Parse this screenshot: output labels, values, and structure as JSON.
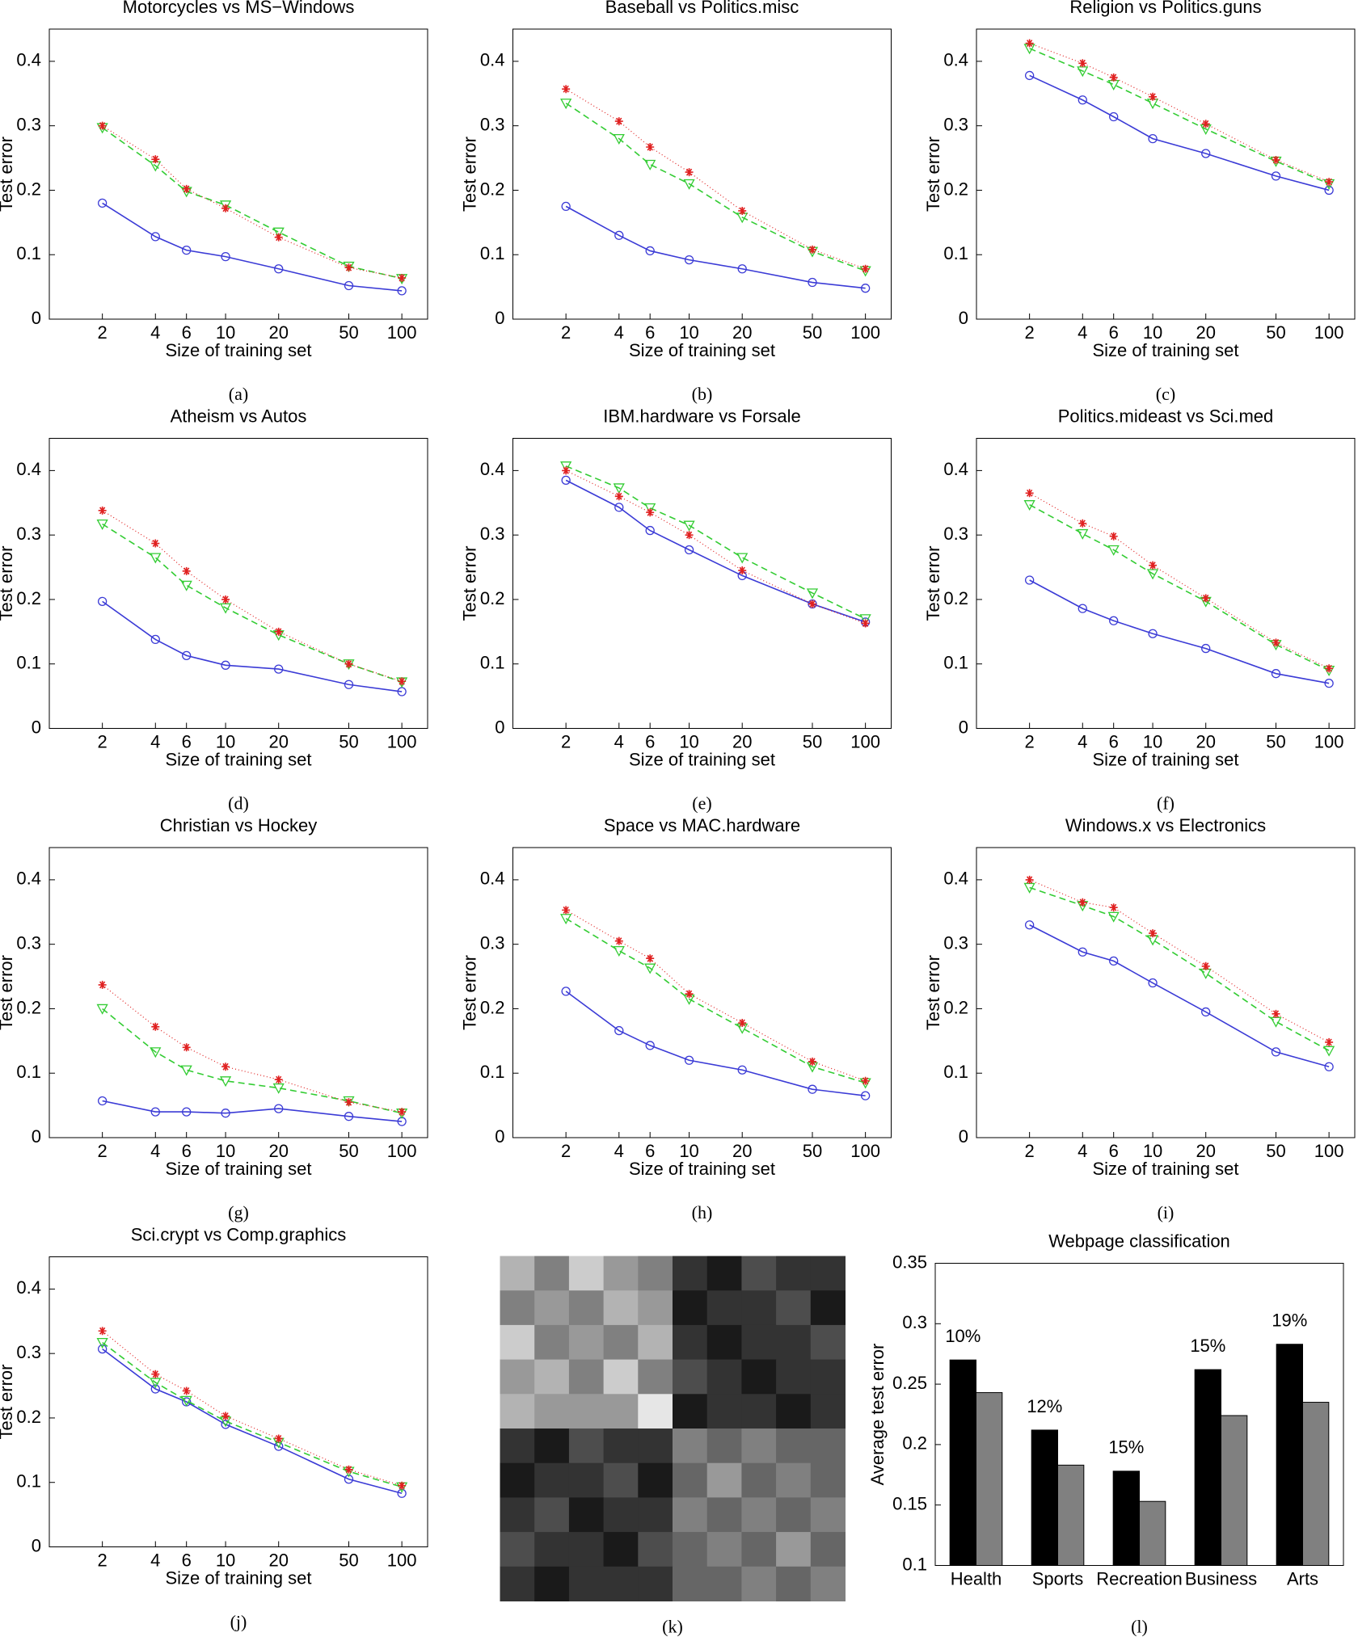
{
  "chart_data": [
    {
      "type": "line",
      "title": "Motorcycles  vs  MS−Windows",
      "xlabel": "Size of training set",
      "ylabel": "Test error",
      "caption": "(a)",
      "log_x": true,
      "x": [
        2,
        4,
        6,
        10,
        20,
        50,
        100
      ],
      "xlim": [
        1,
        140
      ],
      "xticks": [
        2,
        4,
        6,
        10,
        20,
        50,
        100
      ],
      "ylim": [
        0,
        0.45
      ],
      "yticks": [
        0,
        0.1,
        0.2,
        0.3,
        0.4
      ],
      "series": [
        {
          "color": "#3b3bd6",
          "marker": "circle",
          "dash": "none",
          "values": [
            0.18,
            0.128,
            0.107,
            0.097,
            0.078,
            0.052,
            0.044
          ]
        },
        {
          "color": "#33cc33",
          "marker": "triangle",
          "dash": "8 5",
          "values": [
            0.297,
            0.238,
            0.198,
            0.177,
            0.135,
            0.082,
            0.063
          ]
        },
        {
          "color": "#e02020",
          "marker": "star",
          "dash": "1 3",
          "values": [
            0.3,
            0.248,
            0.202,
            0.172,
            0.127,
            0.08,
            0.064
          ]
        }
      ]
    },
    {
      "type": "line",
      "title": "Baseball  vs  Politics.misc",
      "xlabel": "Size of training set",
      "ylabel": "Test error",
      "caption": "(b)",
      "log_x": true,
      "x": [
        2,
        4,
        6,
        10,
        20,
        50,
        100
      ],
      "xlim": [
        1,
        140
      ],
      "xticks": [
        2,
        4,
        6,
        10,
        20,
        50,
        100
      ],
      "ylim": [
        0,
        0.45
      ],
      "yticks": [
        0,
        0.1,
        0.2,
        0.3,
        0.4
      ],
      "series": [
        {
          "color": "#3b3bd6",
          "marker": "circle",
          "dash": "none",
          "values": [
            0.175,
            0.13,
            0.106,
            0.092,
            0.078,
            0.057,
            0.048
          ]
        },
        {
          "color": "#33cc33",
          "marker": "triangle",
          "dash": "8 5",
          "values": [
            0.335,
            0.28,
            0.24,
            0.21,
            0.158,
            0.105,
            0.075
          ]
        },
        {
          "color": "#e02020",
          "marker": "star",
          "dash": "1 3",
          "values": [
            0.357,
            0.307,
            0.267,
            0.228,
            0.168,
            0.108,
            0.078
          ]
        }
      ]
    },
    {
      "type": "line",
      "title": "Religion  vs  Politics.guns",
      "xlabel": "Size of training set",
      "ylabel": "Test error",
      "caption": "(c)",
      "log_x": true,
      "x": [
        2,
        4,
        6,
        10,
        20,
        50,
        100
      ],
      "xlim": [
        1,
        140
      ],
      "xticks": [
        2,
        4,
        6,
        10,
        20,
        50,
        100
      ],
      "ylim": [
        0,
        0.45
      ],
      "yticks": [
        0,
        0.1,
        0.2,
        0.3,
        0.4
      ],
      "series": [
        {
          "color": "#3b3bd6",
          "marker": "circle",
          "dash": "none",
          "values": [
            0.378,
            0.34,
            0.314,
            0.28,
            0.257,
            0.222,
            0.2
          ]
        },
        {
          "color": "#33cc33",
          "marker": "triangle",
          "dash": "8 5",
          "values": [
            0.42,
            0.385,
            0.364,
            0.335,
            0.295,
            0.245,
            0.21
          ]
        },
        {
          "color": "#e02020",
          "marker": "star",
          "dash": "1 3",
          "values": [
            0.428,
            0.397,
            0.375,
            0.345,
            0.303,
            0.247,
            0.213
          ]
        }
      ]
    },
    {
      "type": "line",
      "title": "Atheism  vs  Autos",
      "xlabel": "Size of training set",
      "ylabel": "Test error",
      "caption": "(d)",
      "log_x": true,
      "x": [
        2,
        4,
        6,
        10,
        20,
        50,
        100
      ],
      "xlim": [
        1,
        140
      ],
      "xticks": [
        2,
        4,
        6,
        10,
        20,
        50,
        100
      ],
      "ylim": [
        0,
        0.45
      ],
      "yticks": [
        0,
        0.1,
        0.2,
        0.3,
        0.4
      ],
      "series": [
        {
          "color": "#3b3bd6",
          "marker": "circle",
          "dash": "none",
          "values": [
            0.197,
            0.138,
            0.113,
            0.098,
            0.092,
            0.068,
            0.057
          ]
        },
        {
          "color": "#33cc33",
          "marker": "triangle",
          "dash": "8 5",
          "values": [
            0.317,
            0.265,
            0.222,
            0.187,
            0.145,
            0.1,
            0.072
          ]
        },
        {
          "color": "#e02020",
          "marker": "star",
          "dash": "1 3",
          "values": [
            0.338,
            0.287,
            0.244,
            0.2,
            0.15,
            0.1,
            0.073
          ]
        }
      ]
    },
    {
      "type": "line",
      "title": "IBM.hardware  vs  Forsale",
      "xlabel": "Size of training set",
      "ylabel": "Test error",
      "caption": "(e)",
      "log_x": true,
      "x": [
        2,
        4,
        6,
        10,
        20,
        50,
        100
      ],
      "xlim": [
        1,
        140
      ],
      "xticks": [
        2,
        4,
        6,
        10,
        20,
        50,
        100
      ],
      "ylim": [
        0,
        0.45
      ],
      "yticks": [
        0,
        0.1,
        0.2,
        0.3,
        0.4
      ],
      "series": [
        {
          "color": "#3b3bd6",
          "marker": "circle",
          "dash": "none",
          "values": [
            0.385,
            0.343,
            0.307,
            0.277,
            0.237,
            0.193,
            0.165
          ]
        },
        {
          "color": "#33cc33",
          "marker": "triangle",
          "dash": "8 5",
          "values": [
            0.407,
            0.373,
            0.342,
            0.315,
            0.265,
            0.21,
            0.17
          ]
        },
        {
          "color": "#e02020",
          "marker": "star",
          "dash": "1 3",
          "values": [
            0.4,
            0.36,
            0.335,
            0.3,
            0.245,
            0.193,
            0.163
          ]
        }
      ]
    },
    {
      "type": "line",
      "title": "Politics.mideast  vs  Sci.med",
      "xlabel": "Size of training set",
      "ylabel": "Test error",
      "caption": "(f)",
      "log_x": true,
      "x": [
        2,
        4,
        6,
        10,
        20,
        50,
        100
      ],
      "xlim": [
        1,
        140
      ],
      "xticks": [
        2,
        4,
        6,
        10,
        20,
        50,
        100
      ],
      "ylim": [
        0,
        0.45
      ],
      "yticks": [
        0,
        0.1,
        0.2,
        0.3,
        0.4
      ],
      "series": [
        {
          "color": "#3b3bd6",
          "marker": "circle",
          "dash": "none",
          "values": [
            0.23,
            0.186,
            0.167,
            0.147,
            0.124,
            0.085,
            0.07
          ]
        },
        {
          "color": "#33cc33",
          "marker": "triangle",
          "dash": "8 5",
          "values": [
            0.347,
            0.302,
            0.277,
            0.24,
            0.197,
            0.13,
            0.09
          ]
        },
        {
          "color": "#e02020",
          "marker": "star",
          "dash": "1 3",
          "values": [
            0.365,
            0.318,
            0.298,
            0.253,
            0.202,
            0.133,
            0.093
          ]
        }
      ]
    },
    {
      "type": "line",
      "title": "Christian  vs  Hockey",
      "xlabel": "Size of training set",
      "ylabel": "Test error",
      "caption": "(g)",
      "log_x": true,
      "x": [
        2,
        4,
        6,
        10,
        20,
        50,
        100
      ],
      "xlim": [
        1,
        140
      ],
      "xticks": [
        2,
        4,
        6,
        10,
        20,
        50,
        100
      ],
      "ylim": [
        0,
        0.45
      ],
      "yticks": [
        0,
        0.1,
        0.2,
        0.3,
        0.4
      ],
      "series": [
        {
          "color": "#3b3bd6",
          "marker": "circle",
          "dash": "none",
          "values": [
            0.057,
            0.04,
            0.04,
            0.038,
            0.045,
            0.033,
            0.025
          ]
        },
        {
          "color": "#33cc33",
          "marker": "triangle",
          "dash": "8 5",
          "values": [
            0.2,
            0.133,
            0.105,
            0.088,
            0.077,
            0.057,
            0.038
          ]
        },
        {
          "color": "#e02020",
          "marker": "star",
          "dash": "1 3",
          "values": [
            0.237,
            0.172,
            0.14,
            0.11,
            0.09,
            0.055,
            0.04
          ]
        }
      ]
    },
    {
      "type": "line",
      "title": "Space  vs  MAC.hardware",
      "xlabel": "Size of training set",
      "ylabel": "Test error",
      "caption": "(h)",
      "log_x": true,
      "x": [
        2,
        4,
        6,
        10,
        20,
        50,
        100
      ],
      "xlim": [
        1,
        140
      ],
      "xticks": [
        2,
        4,
        6,
        10,
        20,
        50,
        100
      ],
      "ylim": [
        0,
        0.45
      ],
      "yticks": [
        0,
        0.1,
        0.2,
        0.3,
        0.4
      ],
      "series": [
        {
          "color": "#3b3bd6",
          "marker": "circle",
          "dash": "none",
          "values": [
            0.227,
            0.166,
            0.143,
            0.12,
            0.105,
            0.075,
            0.065
          ]
        },
        {
          "color": "#33cc33",
          "marker": "triangle",
          "dash": "8 5",
          "values": [
            0.34,
            0.29,
            0.263,
            0.215,
            0.17,
            0.11,
            0.085
          ]
        },
        {
          "color": "#e02020",
          "marker": "star",
          "dash": "1 3",
          "values": [
            0.353,
            0.305,
            0.278,
            0.223,
            0.178,
            0.118,
            0.088
          ]
        }
      ]
    },
    {
      "type": "line",
      "title": "Windows.x  vs  Electronics",
      "xlabel": "Size of training set",
      "ylabel": "Test error",
      "caption": "(i)",
      "log_x": true,
      "x": [
        2,
        4,
        6,
        10,
        20,
        50,
        100
      ],
      "xlim": [
        1,
        140
      ],
      "xticks": [
        2,
        4,
        6,
        10,
        20,
        50,
        100
      ],
      "ylim": [
        0,
        0.45
      ],
      "yticks": [
        0,
        0.1,
        0.2,
        0.3,
        0.4
      ],
      "series": [
        {
          "color": "#3b3bd6",
          "marker": "circle",
          "dash": "none",
          "values": [
            0.33,
            0.288,
            0.274,
            0.24,
            0.195,
            0.133,
            0.11
          ]
        },
        {
          "color": "#33cc33",
          "marker": "triangle",
          "dash": "8 5",
          "values": [
            0.388,
            0.36,
            0.343,
            0.307,
            0.255,
            0.18,
            0.135
          ]
        },
        {
          "color": "#e02020",
          "marker": "star",
          "dash": "1 3",
          "values": [
            0.4,
            0.365,
            0.357,
            0.317,
            0.266,
            0.192,
            0.148
          ]
        }
      ]
    },
    {
      "type": "line",
      "title": "Sci.crypt  vs  Comp.graphics",
      "xlabel": "Size of training set",
      "ylabel": "Test error",
      "caption": "(j)",
      "log_x": true,
      "x": [
        2,
        4,
        6,
        10,
        20,
        50,
        100
      ],
      "xlim": [
        1,
        140
      ],
      "xticks": [
        2,
        4,
        6,
        10,
        20,
        50,
        100
      ],
      "ylim": [
        0,
        0.45
      ],
      "yticks": [
        0,
        0.1,
        0.2,
        0.3,
        0.4
      ],
      "series": [
        {
          "color": "#3b3bd6",
          "marker": "circle",
          "dash": "none",
          "values": [
            0.307,
            0.245,
            0.225,
            0.19,
            0.156,
            0.105,
            0.083
          ]
        },
        {
          "color": "#33cc33",
          "marker": "triangle",
          "dash": "8 5",
          "values": [
            0.317,
            0.255,
            0.227,
            0.195,
            0.162,
            0.117,
            0.093
          ]
        },
        {
          "color": "#e02020",
          "marker": "star",
          "dash": "1 3",
          "values": [
            0.335,
            0.268,
            0.242,
            0.203,
            0.168,
            0.12,
            0.095
          ]
        }
      ]
    },
    {
      "type": "heatmap",
      "caption": "(k)",
      "values": [
        [
          0.7,
          0.5,
          0.8,
          0.6,
          0.5,
          0.2,
          0.1,
          0.3,
          0.2,
          0.2
        ],
        [
          0.5,
          0.6,
          0.5,
          0.7,
          0.6,
          0.1,
          0.2,
          0.2,
          0.3,
          0.1
        ],
        [
          0.8,
          0.5,
          0.6,
          0.5,
          0.7,
          0.2,
          0.1,
          0.2,
          0.2,
          0.3
        ],
        [
          0.6,
          0.7,
          0.5,
          0.8,
          0.5,
          0.3,
          0.2,
          0.1,
          0.2,
          0.2
        ],
        [
          0.7,
          0.6,
          0.6,
          0.6,
          0.9,
          0.1,
          0.2,
          0.2,
          0.1,
          0.2
        ],
        [
          0.2,
          0.1,
          0.3,
          0.2,
          0.2,
          0.5,
          0.4,
          0.5,
          0.4,
          0.4
        ],
        [
          0.1,
          0.2,
          0.2,
          0.3,
          0.1,
          0.4,
          0.6,
          0.4,
          0.5,
          0.4
        ],
        [
          0.2,
          0.3,
          0.1,
          0.2,
          0.2,
          0.5,
          0.4,
          0.5,
          0.4,
          0.5
        ],
        [
          0.3,
          0.2,
          0.2,
          0.1,
          0.3,
          0.4,
          0.5,
          0.4,
          0.6,
          0.4
        ],
        [
          0.2,
          0.1,
          0.2,
          0.2,
          0.2,
          0.4,
          0.4,
          0.5,
          0.4,
          0.5
        ]
      ]
    },
    {
      "type": "bar",
      "title": "Webpage classification",
      "ylabel": "Average test error",
      "caption": "(l)",
      "categories": [
        "Health",
        "Sports",
        "Recreation",
        "Business",
        "Arts"
      ],
      "annotations": [
        "10%",
        "12%",
        "15%",
        "15%",
        "19%"
      ],
      "ylim": [
        0.1,
        0.35
      ],
      "yticks": [
        0.1,
        0.15,
        0.2,
        0.25,
        0.3,
        0.35
      ],
      "series": [
        {
          "color": "#000000",
          "values": [
            0.27,
            0.212,
            0.178,
            0.262,
            0.283
          ]
        },
        {
          "color": "#808080",
          "values": [
            0.243,
            0.183,
            0.153,
            0.224,
            0.235
          ]
        }
      ]
    }
  ]
}
